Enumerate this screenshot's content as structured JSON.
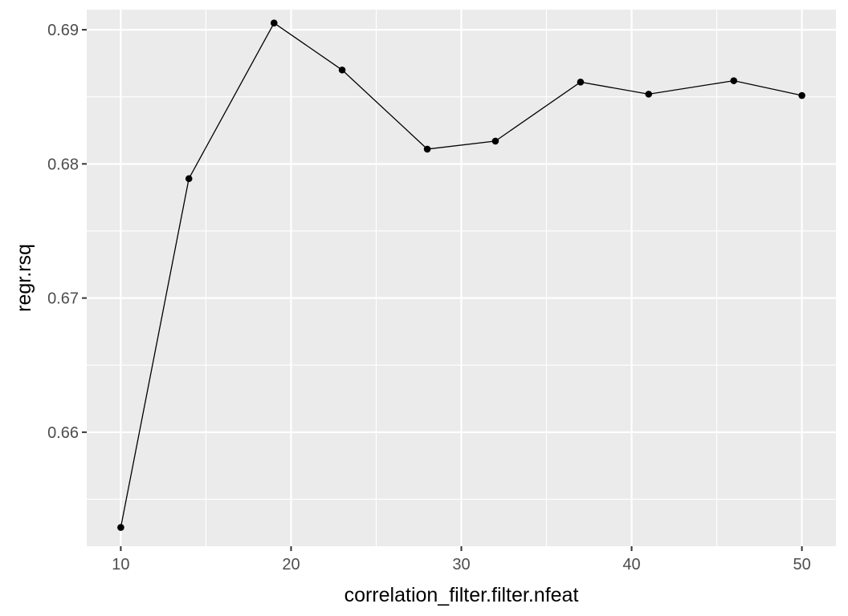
{
  "chart_data": {
    "type": "line",
    "title": "",
    "xlabel": "correlation_filter.filter.nfeat",
    "ylabel": "regr.rsq",
    "x": [
      10,
      14,
      19,
      23,
      28,
      32,
      37,
      41,
      46,
      50
    ],
    "y": [
      0.6529,
      0.6789,
      0.6905,
      0.687,
      0.6811,
      0.6817,
      0.6861,
      0.6852,
      0.6862,
      0.6851
    ],
    "xlim": [
      8,
      52
    ],
    "ylim": [
      0.6515,
      0.6915
    ],
    "xticks": [
      10,
      20,
      30,
      40,
      50
    ],
    "xtick_labels": [
      "10",
      "20",
      "30",
      "40",
      "50"
    ],
    "yticks": [
      0.66,
      0.67,
      0.68,
      0.69
    ],
    "ytick_labels": [
      "0.66",
      "0.67",
      "0.68",
      "0.69"
    ],
    "grid": true,
    "legend": "none",
    "colors": {
      "panel": "#ebebeb",
      "grid": "#ffffff",
      "line": "#000000",
      "point": "#000000",
      "tick_text": "#4d4d4d",
      "tick_mark": "#333333"
    }
  }
}
